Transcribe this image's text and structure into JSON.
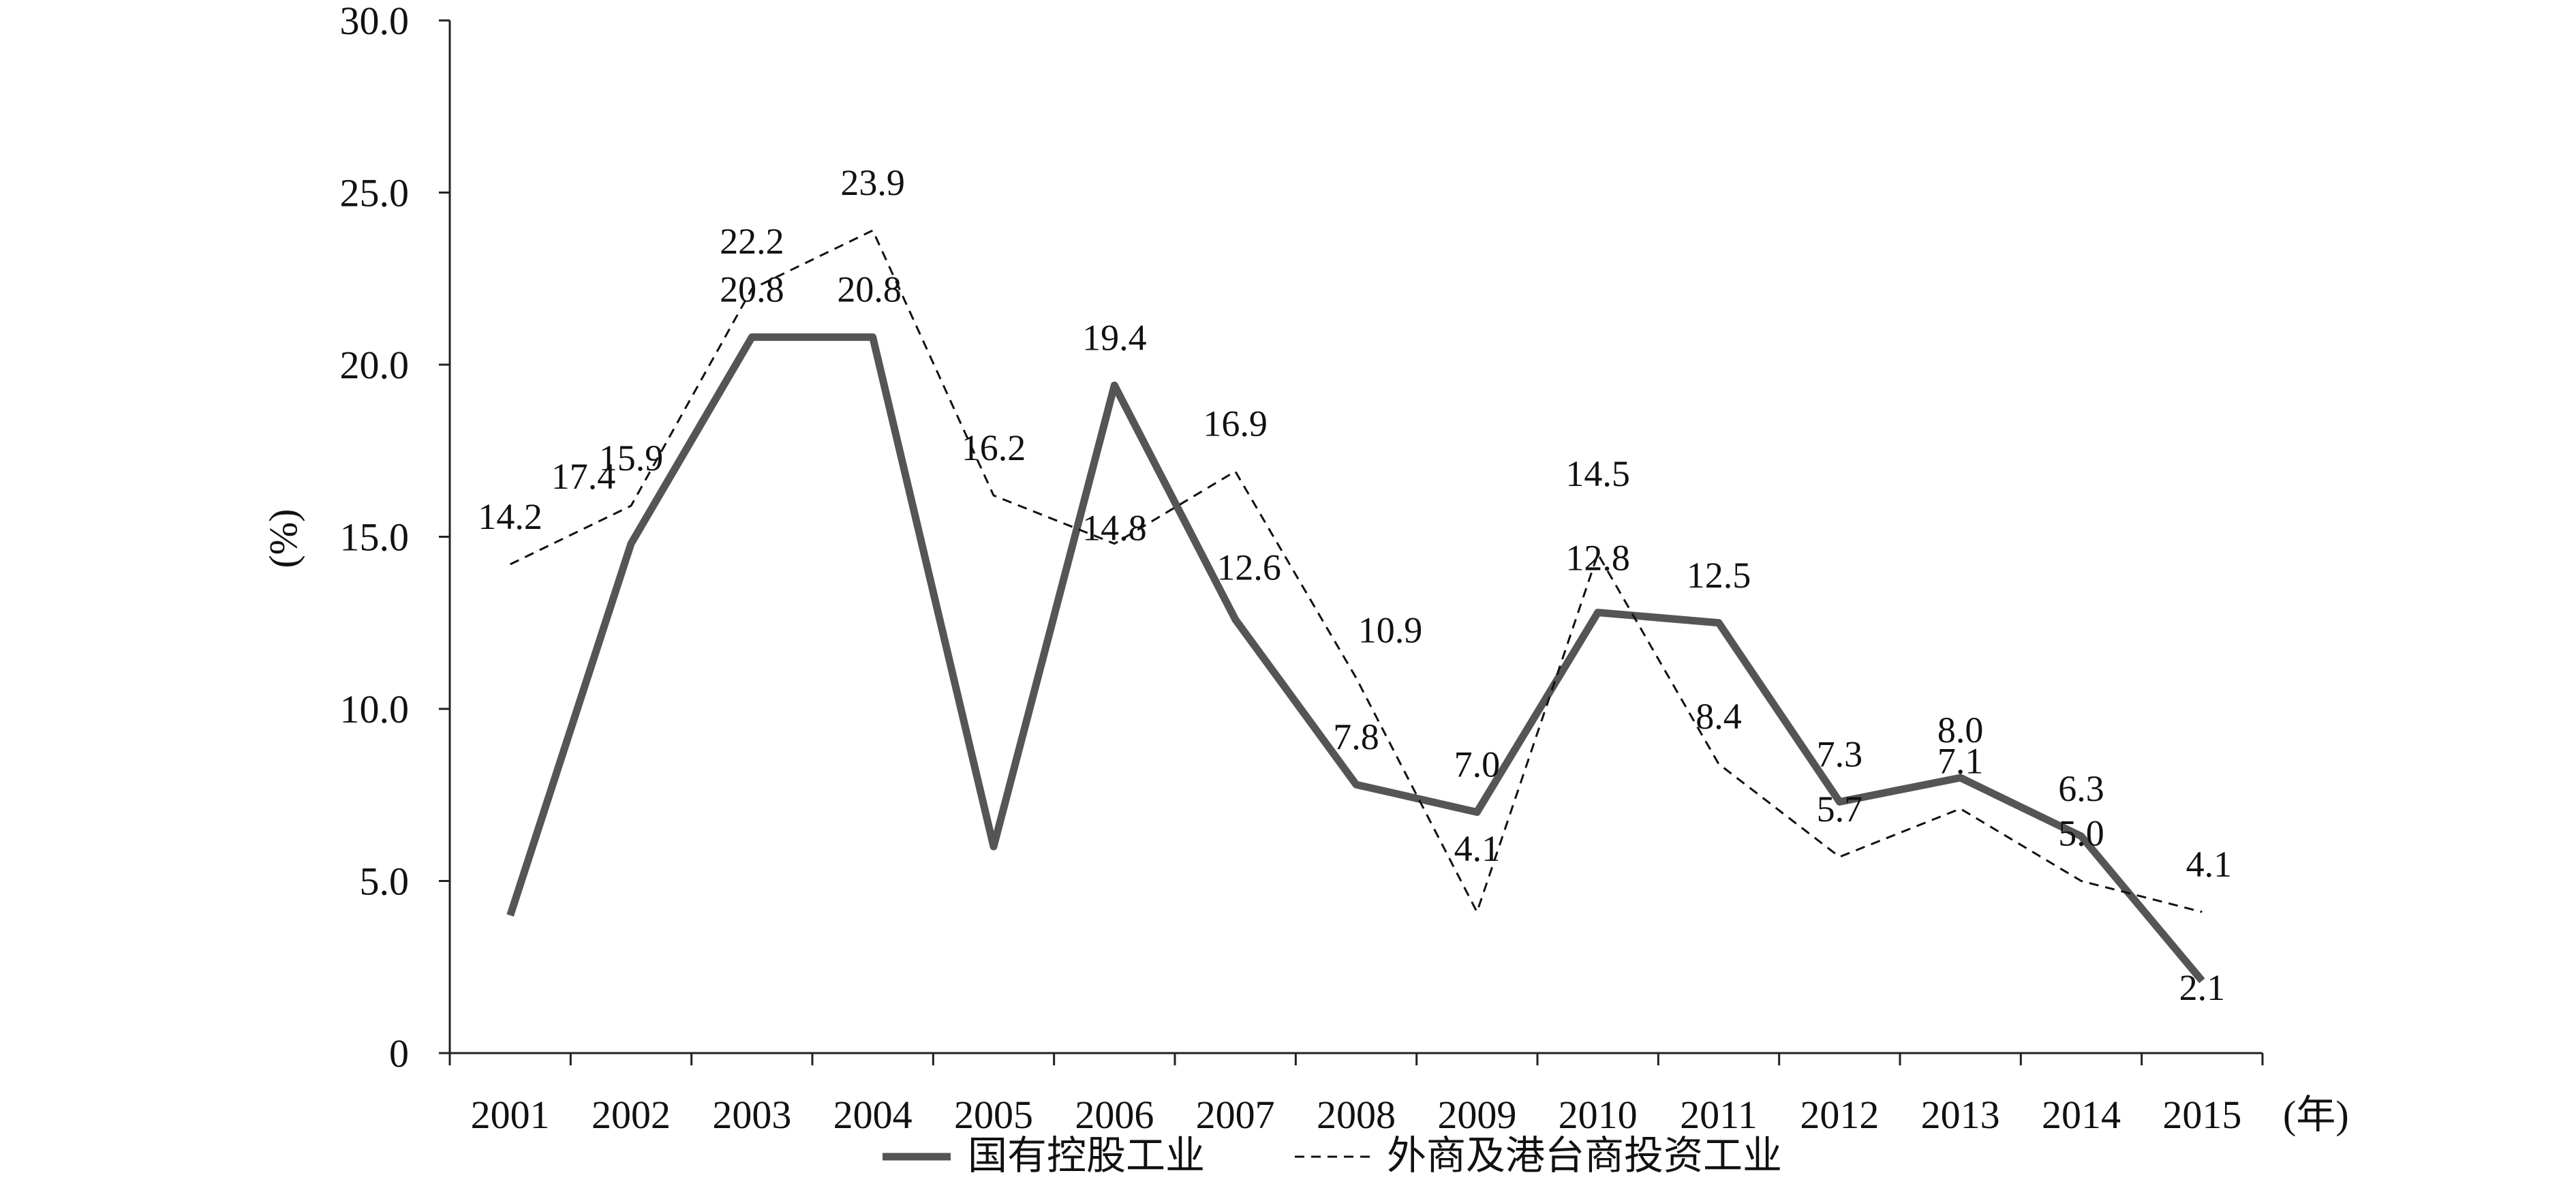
{
  "chart_data": {
    "type": "line",
    "categories": [
      "2001",
      "2002",
      "2003",
      "2004",
      "2005",
      "2006",
      "2007",
      "2008",
      "2009",
      "2010",
      "2011",
      "2012",
      "2013",
      "2014",
      "2015"
    ],
    "x_unit": "(年)",
    "ylabel": "(%)",
    "ylim": [
      0,
      30
    ],
    "yticks": [
      "0",
      "5.0",
      "10.0",
      "15.0",
      "20.0",
      "25.0",
      "30.0"
    ],
    "grid": false,
    "legend_position": "bottom",
    "series": [
      {
        "name": "国有控股工业",
        "style": "solid",
        "color": "#555555",
        "values": [
          4.0,
          14.8,
          20.8,
          20.8,
          6.0,
          19.4,
          12.6,
          7.8,
          7.0,
          12.8,
          12.5,
          7.3,
          8.0,
          6.3,
          2.1
        ],
        "labels": [
          "",
          "",
          "20.8",
          "20.8",
          "",
          "19.4",
          "12.6",
          "7.8",
          "7.0",
          "12.8",
          "12.5",
          "7.3",
          "8.0",
          "6.3",
          "2.1"
        ]
      },
      {
        "name": "外商及港台商投资工业",
        "style": "dashed",
        "color": "#111111",
        "values": [
          14.2,
          15.9,
          22.2,
          23.9,
          16.2,
          14.8,
          16.9,
          10.9,
          4.1,
          14.5,
          8.4,
          5.7,
          7.1,
          5.0,
          4.1
        ],
        "labels": [
          "14.2",
          "15.9",
          "22.2",
          "23.9",
          "16.2",
          "14.8",
          "16.9",
          "10.9",
          "4.1",
          "14.5",
          "8.4",
          "5.7",
          "7.1",
          "5.0",
          "4.1"
        ]
      }
    ],
    "extra_labels": [
      "17.4"
    ]
  }
}
